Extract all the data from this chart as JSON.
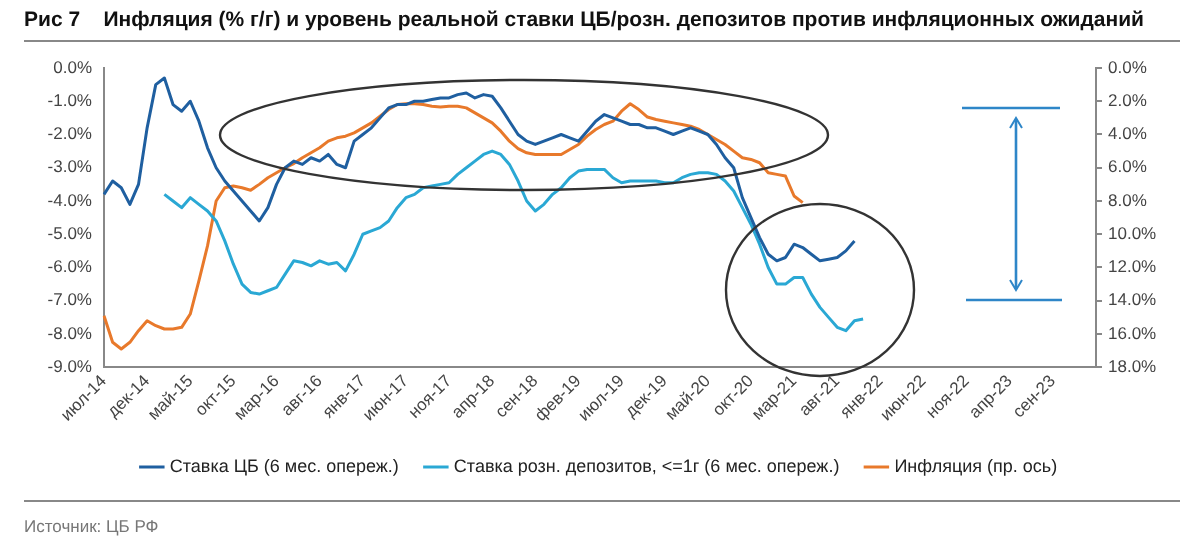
{
  "chart_data": {
    "type": "line",
    "title": "Рис 7    Инфляция (% г/г) и уровень реальной ставки ЦБ/розн. депозитов против инфляционных ожиданий",
    "categories": [
      "июл-14",
      null,
      null,
      null,
      null,
      "дек-14",
      null,
      null,
      null,
      null,
      "май-15",
      null,
      null,
      null,
      null,
      "окт-15",
      null,
      null,
      null,
      null,
      "мар-16",
      null,
      null,
      null,
      null,
      "авг-16",
      null,
      null,
      null,
      null,
      "янв-17",
      null,
      null,
      null,
      null,
      "июн-17",
      null,
      null,
      null,
      null,
      "ноя-17",
      null,
      null,
      null,
      null,
      "апр-18",
      null,
      null,
      null,
      null,
      "сен-18",
      null,
      null,
      null,
      null,
      "фев-19",
      null,
      null,
      null,
      null,
      "июл-19",
      null,
      null,
      null,
      null,
      "дек-19",
      null,
      null,
      null,
      null,
      "май-20",
      null,
      null,
      null,
      null,
      "окт-20",
      null,
      null,
      null,
      null,
      "мар-21",
      null,
      null,
      null,
      null,
      "авг-21",
      null,
      null,
      null,
      null,
      "янв-22",
      null,
      null,
      null,
      null,
      "июн-22",
      null,
      null,
      null,
      null,
      "ноя-22",
      null,
      null,
      null,
      null,
      "апр-23",
      null,
      null,
      null,
      null,
      "сен-23",
      null,
      null,
      null,
      null,
      null
    ],
    "series": [
      {
        "name": "Ставка ЦБ (6 мес. опереж.)",
        "color": "#1f5fa0",
        "values": [
          -3.8,
          -3.4,
          -3.6,
          -4.1,
          -3.5,
          -1.8,
          -0.5,
          -0.3,
          -1.1,
          -1.3,
          -1.0,
          -1.6,
          -2.4,
          -3.0,
          -3.4,
          -3.7,
          -4.0,
          -4.3,
          -4.6,
          -4.2,
          -3.5,
          -3.0,
          -2.8,
          -2.9,
          -2.7,
          -2.8,
          -2.6,
          -2.9,
          -3.0,
          -2.2,
          -2.0,
          -1.8,
          -1.5,
          -1.2,
          -1.1,
          -1.1,
          -1.0,
          -1.0,
          -0.95,
          -0.9,
          -0.9,
          -0.8,
          -0.75,
          -0.9,
          -0.8,
          -0.85,
          -1.2,
          -1.6,
          -2.0,
          -2.2,
          -2.3,
          -2.2,
          -2.1,
          -2.0,
          -2.1,
          -2.2,
          -1.9,
          -1.6,
          -1.4,
          -1.5,
          -1.6,
          -1.7,
          -1.7,
          -1.8,
          -1.8,
          -1.9,
          -2.0,
          -1.9,
          -1.8,
          -1.9,
          -2.0,
          -2.3,
          -2.7,
          -3.0,
          -3.9,
          -4.5,
          -5.1,
          -5.6,
          -5.8,
          -5.7,
          -5.3,
          -5.4,
          -5.6,
          -5.8,
          -5.75,
          -5.7,
          -5.5,
          -5.2,
          null,
          null,
          null,
          null,
          null,
          null,
          null,
          null,
          null,
          null,
          null,
          null,
          null,
          null,
          null,
          null,
          null,
          null,
          null,
          null,
          null,
          null,
          null,
          null,
          null,
          null,
          null,
          null
        ]
      },
      {
        "name": "Ставка розн. депозитов, <=1г (6 мес. опереж.)",
        "color": "#2aa8d4",
        "values": [
          null,
          null,
          null,
          null,
          null,
          null,
          null,
          -3.8,
          -4.0,
          -4.2,
          -3.9,
          -4.1,
          -4.3,
          -4.6,
          -5.2,
          -5.9,
          -6.5,
          -6.75,
          -6.8,
          -6.7,
          -6.6,
          -6.2,
          -5.8,
          -5.85,
          -5.95,
          -5.8,
          -5.9,
          -5.85,
          -6.1,
          -5.6,
          -5.0,
          -4.9,
          -4.8,
          -4.6,
          -4.2,
          -3.9,
          -3.8,
          -3.6,
          -3.55,
          -3.5,
          -3.45,
          -3.2,
          -3.0,
          -2.8,
          -2.6,
          -2.5,
          -2.6,
          -2.9,
          -3.4,
          -4.0,
          -4.3,
          -4.1,
          -3.8,
          -3.6,
          -3.3,
          -3.1,
          -3.05,
          -3.05,
          -3.05,
          -3.3,
          -3.45,
          -3.4,
          -3.4,
          -3.4,
          -3.4,
          -3.45,
          -3.45,
          -3.3,
          -3.2,
          -3.15,
          -3.15,
          -3.2,
          -3.4,
          -3.7,
          -4.2,
          -4.7,
          -5.3,
          -6.0,
          -6.5,
          -6.5,
          -6.3,
          -6.3,
          -6.8,
          -7.2,
          -7.5,
          -7.8,
          -7.9,
          -7.6,
          -7.55,
          null,
          null,
          null,
          null,
          null,
          null,
          null,
          null,
          null,
          null,
          null,
          null,
          null,
          null,
          null,
          null,
          null,
          null,
          null,
          null,
          null,
          null,
          null,
          null,
          null,
          null,
          null
        ]
      },
      {
        "name": "Инфляция (пр. ось)",
        "color": "#e8792b",
        "axis": "y2",
        "values": [
          14.9,
          16.5,
          16.9,
          16.5,
          15.8,
          15.2,
          15.5,
          15.7,
          15.7,
          15.6,
          14.8,
          12.8,
          10.7,
          8.0,
          7.2,
          7.1,
          7.2,
          7.35,
          7.0,
          6.6,
          6.3,
          6.0,
          5.75,
          5.4,
          5.1,
          4.8,
          4.4,
          4.2,
          4.1,
          3.9,
          3.6,
          3.3,
          2.9,
          2.5,
          2.2,
          2.15,
          2.15,
          2.2,
          2.3,
          2.35,
          2.3,
          2.3,
          2.4,
          2.7,
          3.0,
          3.3,
          3.8,
          4.4,
          4.85,
          5.1,
          5.2,
          5.2,
          5.2,
          5.2,
          4.9,
          4.6,
          4.1,
          3.7,
          3.4,
          3.2,
          2.6,
          2.15,
          2.5,
          2.95,
          3.1,
          3.2,
          3.3,
          3.4,
          3.5,
          3.7,
          4.0,
          4.3,
          4.6,
          5.0,
          5.4,
          5.5,
          5.7,
          6.3,
          6.4,
          6.5,
          7.7,
          8.1,
          null,
          null,
          null,
          null,
          null,
          null,
          null,
          null,
          null,
          null,
          null,
          null,
          null,
          null,
          null,
          null,
          null,
          null,
          null,
          null,
          null,
          null,
          null,
          null,
          null,
          null,
          null,
          null,
          null,
          null,
          null,
          null,
          null,
          null
        ]
      }
    ],
    "ylim": [
      -9,
      0
    ],
    "yticks": [
      {
        "value": -9,
        "label": "-9.0%"
      },
      {
        "value": -8,
        "label": "-8.0%"
      },
      {
        "value": -7,
        "label": "-7.0%"
      },
      {
        "value": -6,
        "label": "-6.0%"
      },
      {
        "value": -5,
        "label": "-5.0%"
      },
      {
        "value": -4,
        "label": "-4.0%"
      },
      {
        "value": -3,
        "label": "-3.0%"
      },
      {
        "value": -2,
        "label": "-2.0%"
      },
      {
        "value": -1,
        "label": "-1.0%"
      },
      {
        "value": 0,
        "label": "0.0%"
      }
    ],
    "y2lim": [
      18,
      0
    ],
    "y2ticks": [
      {
        "value": 0,
        "label": "0.0%"
      },
      {
        "value": 2,
        "label": "2.0%"
      },
      {
        "value": 4,
        "label": "4.0%"
      },
      {
        "value": 6,
        "label": "6.0%"
      },
      {
        "value": 8,
        "label": "8.0%"
      },
      {
        "value": 10,
        "label": "10.0%"
      },
      {
        "value": 12,
        "label": "12.0%"
      },
      {
        "value": 14,
        "label": "14.0%"
      },
      {
        "value": 16,
        "label": "16.0%"
      },
      {
        "value": 18,
        "label": "18.0%"
      }
    ],
    "legend": "bottom",
    "grid": false,
    "marker": "none",
    "line_style": "solid",
    "annotations": [
      "Источник: ЦБ РФ"
    ]
  }
}
